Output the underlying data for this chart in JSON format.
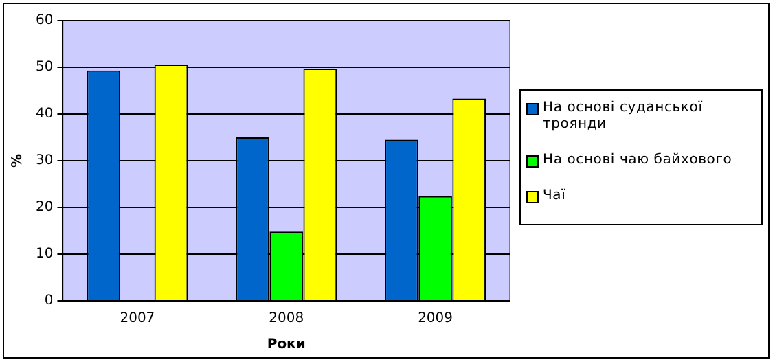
{
  "chart_data": {
    "type": "bar",
    "xlabel": "Роки",
    "ylabel": "%",
    "categories": [
      "2007",
      "2008",
      "2009"
    ],
    "series": [
      {
        "name": "На основі суданської троянди",
        "color": "#0066cc",
        "values": [
          49.3,
          35,
          34.5
        ]
      },
      {
        "name": "На основі чаю байхового",
        "color": "#00ff00",
        "values": [
          null,
          14.8,
          22.4
        ]
      },
      {
        "name": "Чаї",
        "color": "#ffff00",
        "values": [
          50.6,
          49.7,
          43.3
        ]
      }
    ],
    "ylim": [
      0,
      60
    ],
    "yticks": [
      0,
      10,
      20,
      30,
      40,
      50,
      60
    ],
    "grid": "y",
    "legend": "right"
  }
}
